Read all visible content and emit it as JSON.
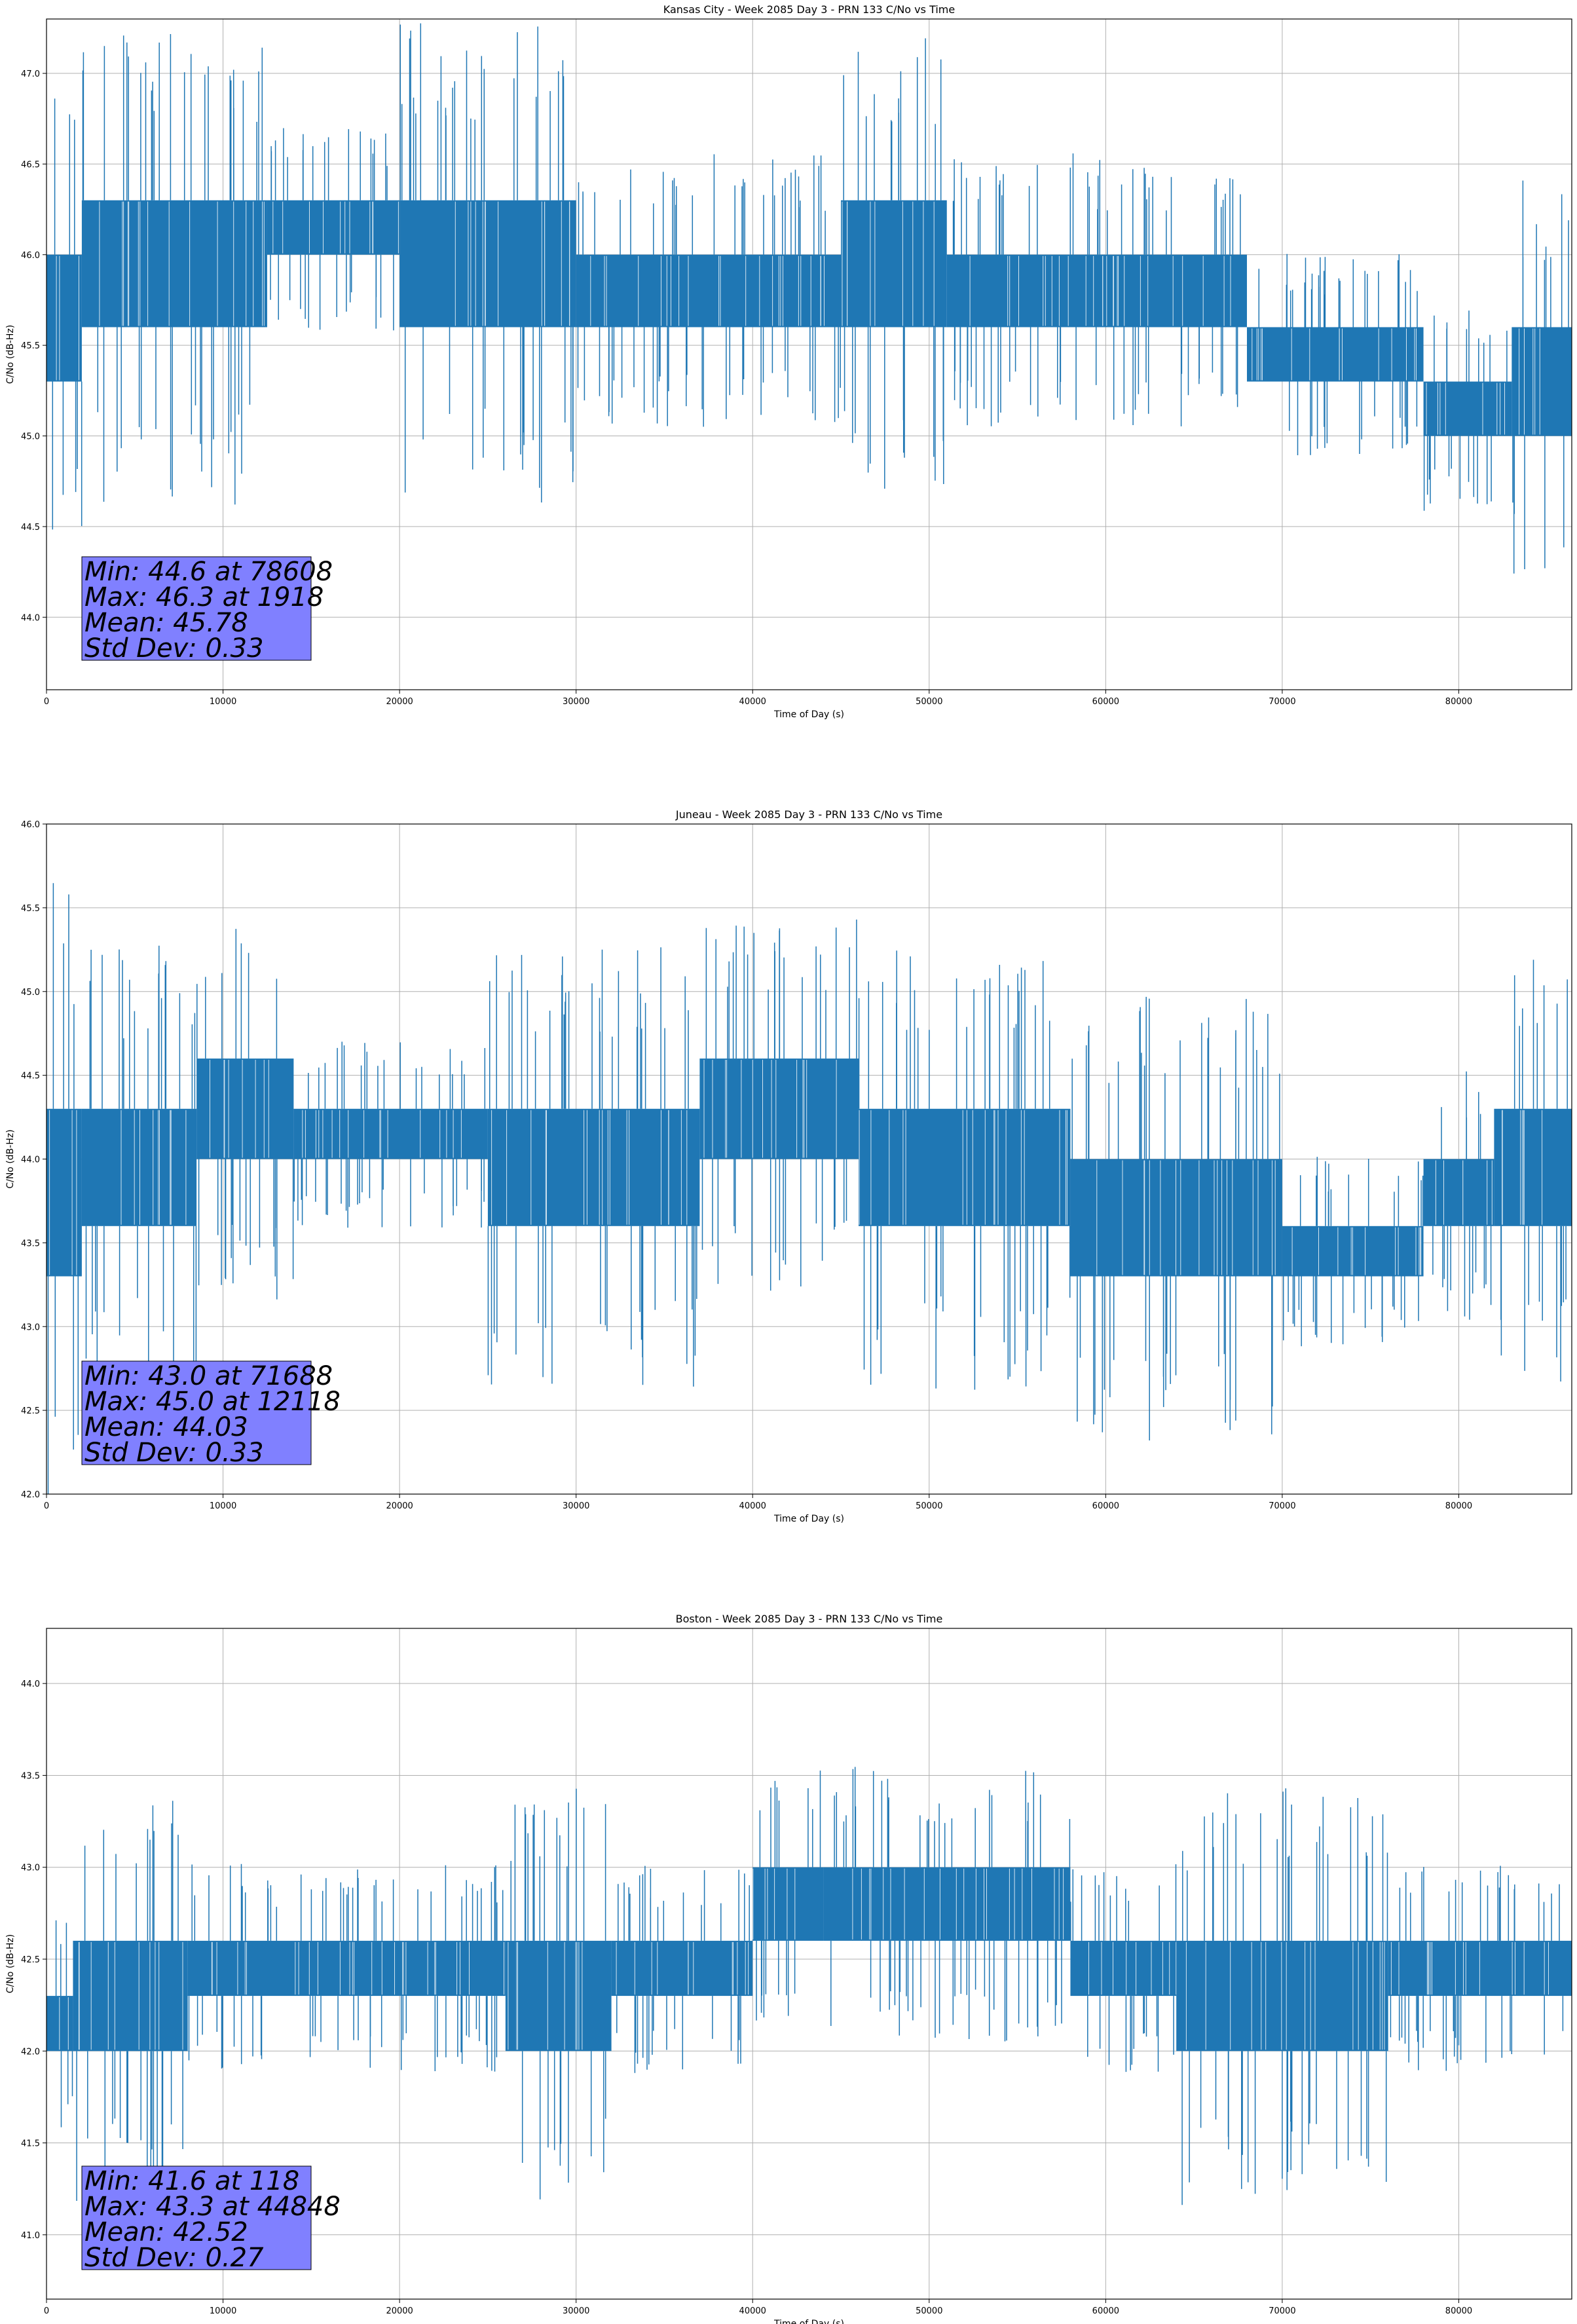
{
  "colors": {
    "series": "#1f77b4",
    "stats_box": "#8080ff",
    "grid": "#b0b0b0"
  },
  "chart_data": [
    {
      "type": "line",
      "title": "Kansas City - Week 2085 Day 3 - PRN 133 C/No vs Time",
      "xlabel": "Time of Day (s)",
      "ylabel": "C/No (dB-Hz)",
      "xlim": [
        0,
        86400
      ],
      "ylim": [
        43.6,
        47.3
      ],
      "xticks": [
        0,
        10000,
        20000,
        30000,
        40000,
        50000,
        60000,
        70000,
        80000
      ],
      "yticks": [
        44.0,
        44.5,
        45.0,
        45.5,
        46.0,
        46.5,
        47.0
      ],
      "ytick_labels": [
        "44.0",
        "44.5",
        "45.0",
        "45.5",
        "46.0",
        "46.5",
        "47.0"
      ],
      "grid": true,
      "series": [
        {
          "segments": [
            {
              "x": [
                0,
                2000
              ],
              "low": 45.3,
              "high": 46.0
            },
            {
              "x": [
                2000,
                12500
              ],
              "low": 45.6,
              "high": 46.3
            },
            {
              "x": [
                12500,
                20000
              ],
              "low": 46.0,
              "high": 46.3
            },
            {
              "x": [
                20000,
                30000
              ],
              "low": 45.6,
              "high": 46.3
            },
            {
              "x": [
                30000,
                45000
              ],
              "low": 45.6,
              "high": 46.0
            },
            {
              "x": [
                45000,
                51000
              ],
              "low": 45.6,
              "high": 46.3
            },
            {
              "x": [
                51000,
                68000
              ],
              "low": 45.6,
              "high": 46.0
            },
            {
              "x": [
                68000,
                78000
              ],
              "low": 45.3,
              "high": 45.6
            },
            {
              "x": [
                78000,
                83000
              ],
              "low": 45.0,
              "high": 45.3
            },
            {
              "x": [
                83000,
                86400
              ],
              "low": 45.0,
              "high": 45.6
            }
          ]
        }
      ],
      "stats": [
        "Min: 44.6 at 78608",
        "Max: 46.3 at 1918",
        "Mean: 45.78",
        "Std Dev: 0.33"
      ]
    },
    {
      "type": "line",
      "title": "Juneau - Week 2085 Day 3 - PRN 133 C/No vs Time",
      "xlabel": "Time of Day (s)",
      "ylabel": "C/No (dB-Hz)",
      "xlim": [
        0,
        86400
      ],
      "ylim": [
        42.0,
        46.0
      ],
      "xticks": [
        0,
        10000,
        20000,
        30000,
        40000,
        50000,
        60000,
        70000,
        80000
      ],
      "yticks": [
        42.0,
        42.5,
        43.0,
        43.5,
        44.0,
        44.5,
        45.0,
        45.5,
        46.0
      ],
      "ytick_labels": [
        "42.0",
        "42.5",
        "43.0",
        "43.5",
        "44.0",
        "44.5",
        "45.0",
        "45.5",
        "46.0"
      ],
      "grid": true,
      "series": [
        {
          "segments": [
            {
              "x": [
                0,
                2000
              ],
              "low": 43.3,
              "high": 44.3
            },
            {
              "x": [
                2000,
                8500
              ],
              "low": 43.6,
              "high": 44.3
            },
            {
              "x": [
                8500,
                14000
              ],
              "low": 44.0,
              "high": 44.6
            },
            {
              "x": [
                14000,
                25000
              ],
              "low": 44.0,
              "high": 44.3
            },
            {
              "x": [
                25000,
                37000
              ],
              "low": 43.6,
              "high": 44.3
            },
            {
              "x": [
                37000,
                46000
              ],
              "low": 44.0,
              "high": 44.6
            },
            {
              "x": [
                46000,
                58000
              ],
              "low": 43.6,
              "high": 44.3
            },
            {
              "x": [
                58000,
                70000
              ],
              "low": 43.3,
              "high": 44.0
            },
            {
              "x": [
                70000,
                78000
              ],
              "low": 43.3,
              "high": 43.6
            },
            {
              "x": [
                78000,
                82000
              ],
              "low": 43.6,
              "high": 44.0
            },
            {
              "x": [
                82000,
                86400
              ],
              "low": 43.6,
              "high": 44.3
            }
          ]
        }
      ],
      "stats": [
        "Min: 43.0 at 71688",
        "Max: 45.0 at 12118",
        "Mean: 44.03",
        "Std Dev: 0.33"
      ]
    },
    {
      "type": "line",
      "title": "Boston - Week 2085 Day 3 - PRN 133 C/No vs Time",
      "xlabel": "Time of Day (s)",
      "ylabel": "C/No (dB-Hz)",
      "xlim": [
        0,
        86400
      ],
      "ylim": [
        40.65,
        44.3
      ],
      "xticks": [
        0,
        10000,
        20000,
        30000,
        40000,
        50000,
        60000,
        70000,
        80000
      ],
      "yticks": [
        41.0,
        41.5,
        42.0,
        42.5,
        43.0,
        43.5,
        44.0
      ],
      "ytick_labels": [
        "41.0",
        "41.5",
        "42.0",
        "42.5",
        "43.0",
        "43.5",
        "44.0"
      ],
      "grid": true,
      "series": [
        {
          "segments": [
            {
              "x": [
                0,
                1500
              ],
              "low": 42.0,
              "high": 42.3
            },
            {
              "x": [
                1500,
                8000
              ],
              "low": 42.0,
              "high": 42.6
            },
            {
              "x": [
                8000,
                26000
              ],
              "low": 42.3,
              "high": 42.6
            },
            {
              "x": [
                26000,
                32000
              ],
              "low": 42.0,
              "high": 42.6
            },
            {
              "x": [
                32000,
                40000
              ],
              "low": 42.3,
              "high": 42.6
            },
            {
              "x": [
                40000,
                44000
              ],
              "low": 42.6,
              "high": 43.0
            },
            {
              "x": [
                44000,
                58000
              ],
              "low": 42.6,
              "high": 43.0
            },
            {
              "x": [
                58000,
                64000
              ],
              "low": 42.3,
              "high": 42.6
            },
            {
              "x": [
                64000,
                76000
              ],
              "low": 42.0,
              "high": 42.6
            },
            {
              "x": [
                76000,
                86400
              ],
              "low": 42.3,
              "high": 42.6
            }
          ]
        }
      ],
      "stats": [
        "Min: 41.6 at 118",
        "Max: 43.3 at 44848",
        "Mean: 42.52",
        "Std Dev: 0.27"
      ]
    }
  ]
}
